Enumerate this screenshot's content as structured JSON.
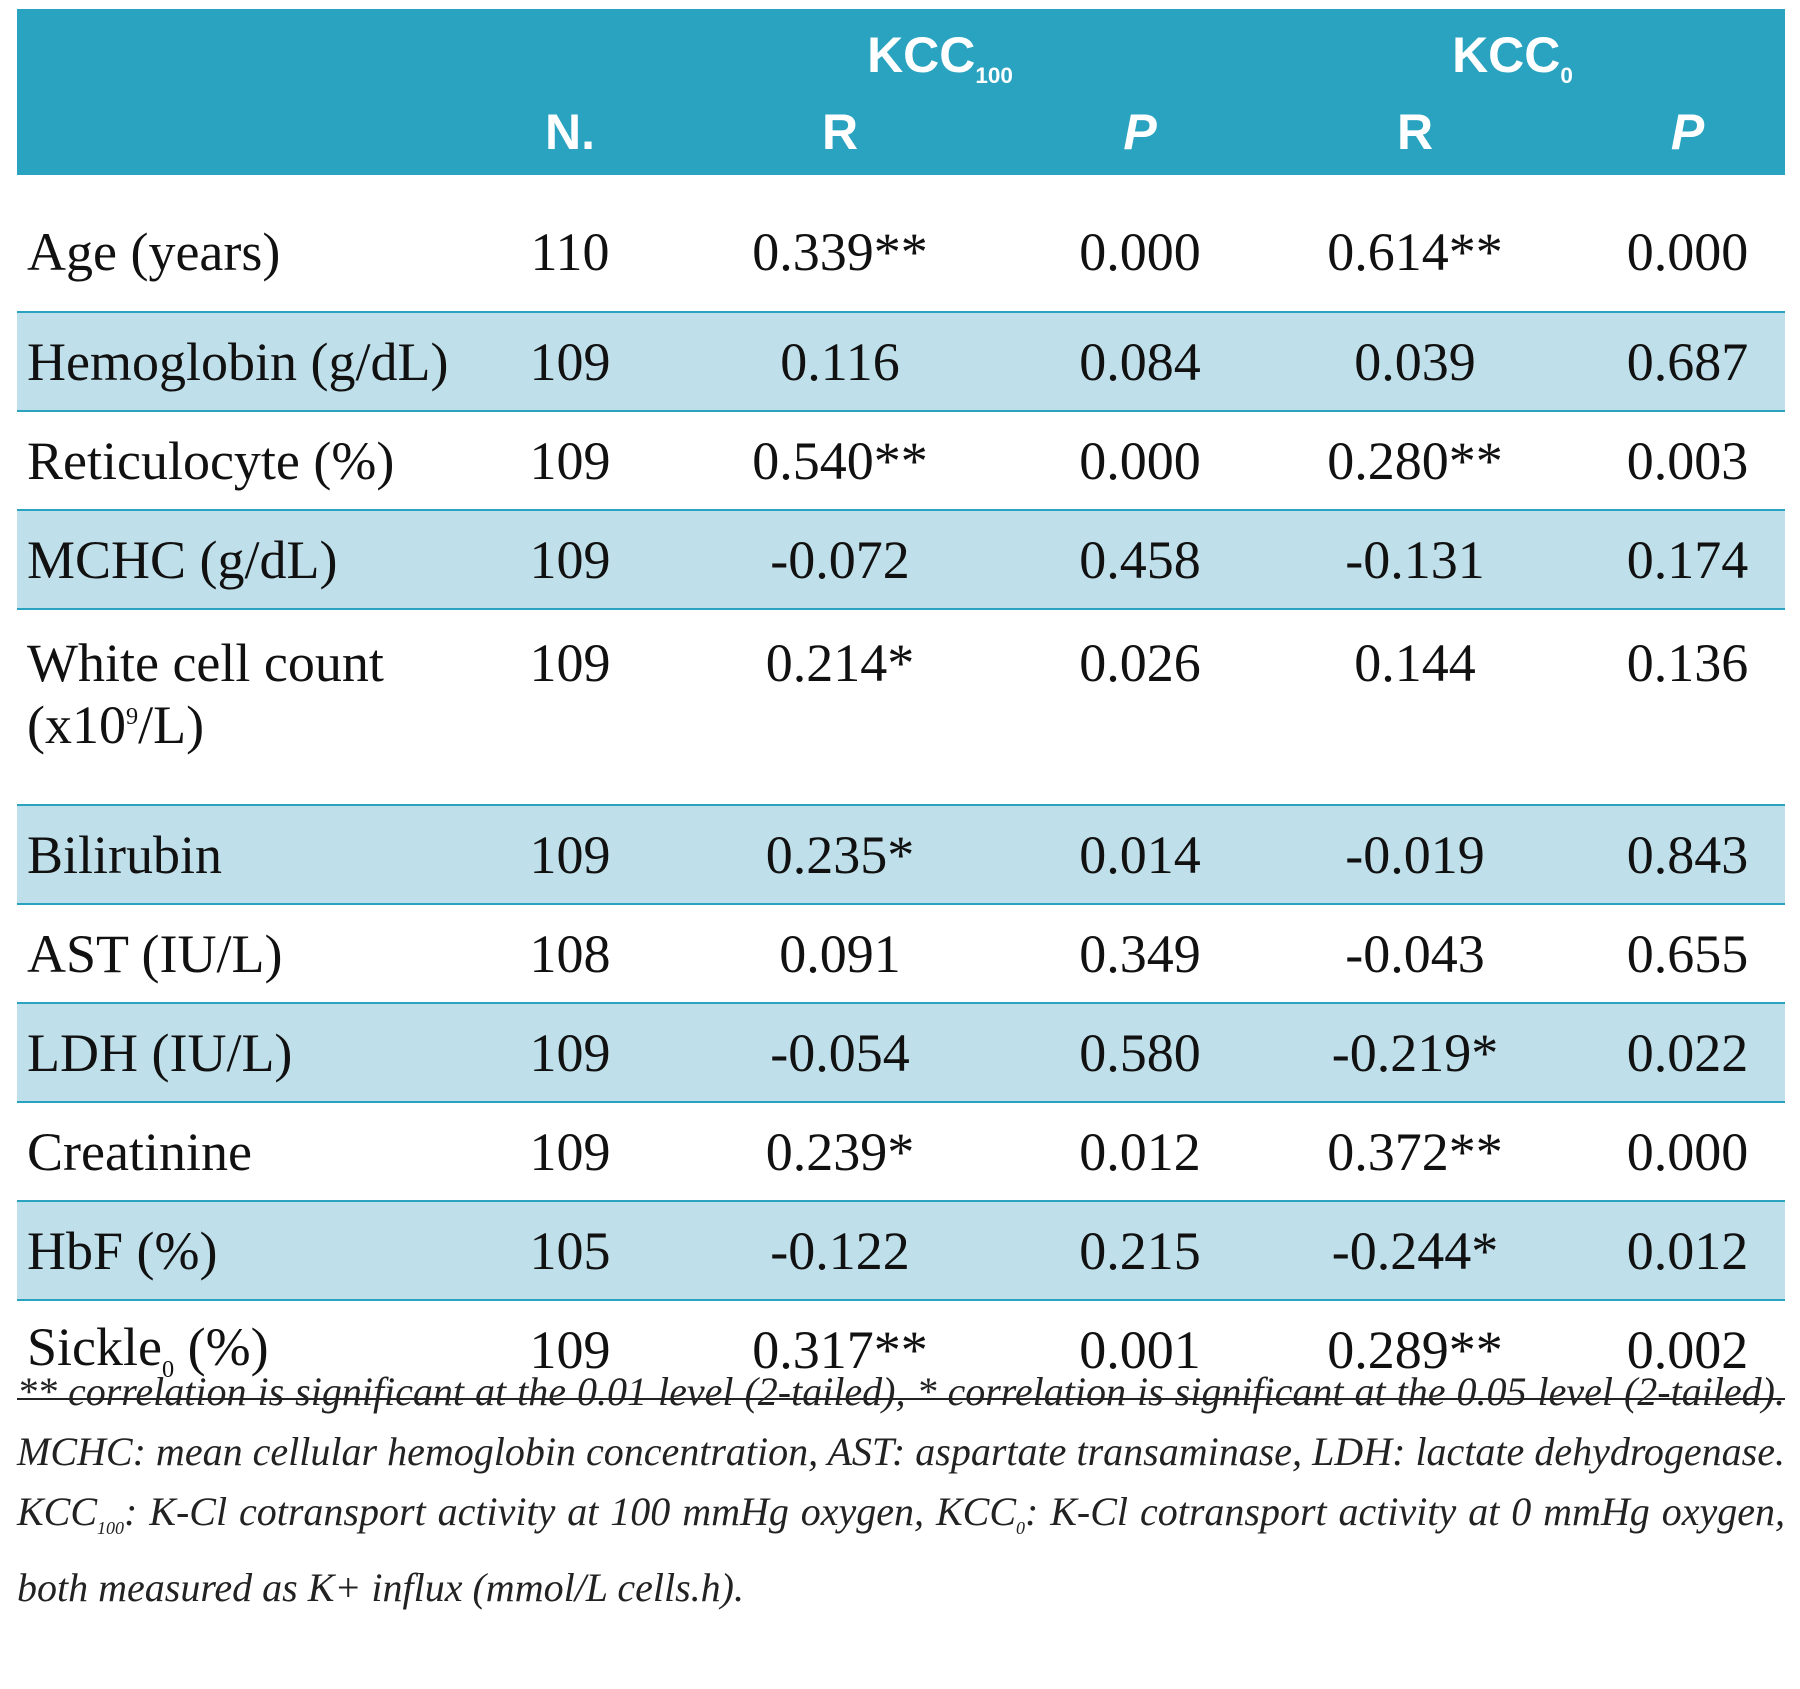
{
  "table": {
    "group_headers": [
      [
        "KCC",
        {
          "sub": "100"
        }
      ],
      [
        "KCC",
        {
          "sub": "0"
        }
      ]
    ],
    "columns": [
      "N.",
      "R",
      "P",
      "R",
      "P"
    ],
    "rows": [
      {
        "label": [
          "Age (years)"
        ],
        "cells": [
          "110",
          "0.339**",
          "0.000",
          "0.614**",
          "0.000"
        ]
      },
      {
        "label": [
          "Hemoglobin (g/dL)"
        ],
        "cells": [
          "109",
          "0.116",
          "0.084",
          "0.039",
          "0.687"
        ]
      },
      {
        "label": [
          "Reticulocyte (%)"
        ],
        "cells": [
          "109",
          "0.540**",
          "0.000",
          "0.280**",
          "0.003"
        ]
      },
      {
        "label": [
          "MCHC (g/dL)"
        ],
        "cells": [
          "109",
          "-0.072",
          "0.458",
          "-0.131",
          "0.174"
        ]
      },
      {
        "label": [
          "White cell count (x10",
          {
            "sup": "9"
          },
          "/L)"
        ],
        "cells": [
          "109",
          "0.214*",
          "0.026",
          "0.144",
          "0.136"
        ]
      },
      {
        "label": [
          "Bilirubin"
        ],
        "cells": [
          "109",
          "0.235*",
          "0.014",
          "-0.019",
          "0.843"
        ]
      },
      {
        "label": [
          "AST (IU/L)"
        ],
        "cells": [
          "108",
          "0.091",
          "0.349",
          "-0.043",
          "0.655"
        ]
      },
      {
        "label": [
          "LDH (IU/L)"
        ],
        "cells": [
          "109",
          "-0.054",
          "0.580",
          "-0.219*",
          "0.022"
        ]
      },
      {
        "label": [
          "Creatinine"
        ],
        "cells": [
          "109",
          "0.239*",
          "0.012",
          "0.372**",
          "0.000"
        ]
      },
      {
        "label": [
          "HbF (%)"
        ],
        "cells": [
          "105",
          "-0.122",
          "0.215",
          "-0.244*",
          "0.012"
        ]
      },
      {
        "label": [
          "Sickle",
          {
            "sub": "0"
          },
          " (%)"
        ],
        "cells": [
          "109",
          "0.317**",
          "0.001",
          "0.289**",
          "0.002"
        ]
      }
    ]
  },
  "footnote": [
    "** correlation is significant at the 0.01 level (2-tailed), * correlation is significant at the 0.05 level (2-tailed). MCHC: mean cellular hemoglobin concentration, AST: aspartate transaminase, LDH: lactate dehydrogenase. KCC",
    {
      "sub": "100"
    },
    ": K-Cl cotransport activity at 100 mmHg oxygen, KCC",
    {
      "sub": "0"
    },
    ": K-Cl cotransport activity at 0 mmHg oxygen, both measured as K+ influx (mmol/L cells.h)."
  ]
}
